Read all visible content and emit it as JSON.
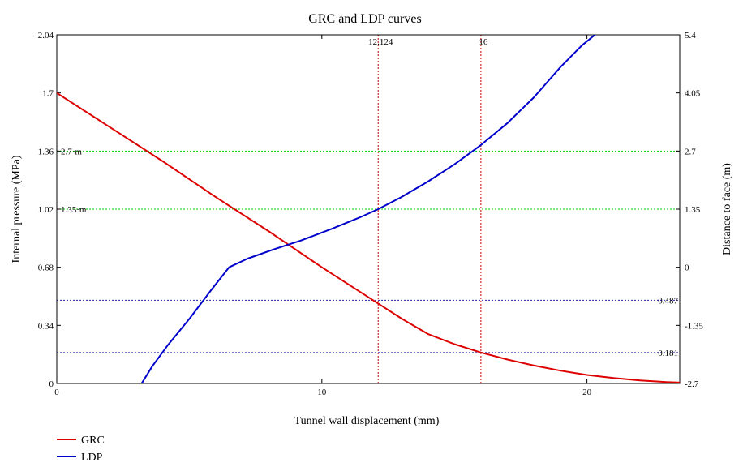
{
  "chart_data": {
    "type": "line",
    "title": "GRC and LDP curves",
    "xlabel": "Tunnel wall displacement (mm)",
    "ylabel_left": "Internal pressure (MPa)",
    "ylabel_right": "Distance to face (m)",
    "xlim": [
      0,
      23.5
    ],
    "ylim_left": [
      0,
      2.04
    ],
    "ylim_right": [
      -2.7,
      5.4
    ],
    "x_ticks": [
      "0",
      "10",
      "20"
    ],
    "x_tick_values": [
      0,
      10,
      20
    ],
    "y_left_ticks": [
      "0",
      "0.34",
      "0.68",
      "1.02",
      "1.36",
      "1.7",
      "2.04"
    ],
    "y_left_tick_values": [
      0,
      0.34,
      0.68,
      1.02,
      1.36,
      1.7,
      2.04
    ],
    "y_right_ticks": [
      "-2.7",
      "-1.35",
      "0",
      "1.35",
      "2.7",
      "4.05",
      "5.4"
    ],
    "y_right_tick_values": [
      -2.7,
      -1.35,
      0,
      1.35,
      2.7,
      4.05,
      5.4
    ],
    "series": [
      {
        "name": "GRC",
        "axis": "left",
        "color": "#dd0000",
        "x": [
          0,
          2,
          4,
          6,
          8,
          10,
          12,
          13,
          14,
          15,
          16,
          17,
          18,
          19,
          20,
          21,
          22,
          23,
          23.5
        ],
        "y": [
          1.7,
          1.5,
          1.3,
          1.09,
          0.89,
          0.68,
          0.48,
          0.38,
          0.29,
          0.23,
          0.181,
          0.14,
          0.105,
          0.075,
          0.05,
          0.032,
          0.018,
          0.008,
          0.005
        ]
      },
      {
        "name": "LDP",
        "axis": "right",
        "color": "#0000cc",
        "x": [
          3.2,
          3.6,
          4.2,
          5.0,
          5.8,
          6.5,
          7.2,
          8.2,
          9.2,
          10.4,
          11.4,
          12.124,
          13.0,
          14.0,
          15.0,
          16.0,
          17.0,
          18.0,
          19.0,
          19.8,
          20.3,
          20.6
        ],
        "y": [
          -2.7,
          -2.3,
          -1.8,
          -1.2,
          -0.55,
          0,
          0.2,
          0.42,
          0.62,
          0.9,
          1.15,
          1.35,
          1.63,
          1.99,
          2.39,
          2.84,
          3.35,
          3.95,
          4.65,
          5.15,
          5.4,
          5.5
        ]
      }
    ],
    "reference_lines": [
      {
        "orientation": "vertical",
        "axis": "x",
        "value": 12.124,
        "label": "12.124",
        "color": "#cc0000"
      },
      {
        "orientation": "vertical",
        "axis": "x",
        "value": 16,
        "label": "16",
        "color": "#cc0000"
      },
      {
        "orientation": "horizontal",
        "axis": "right",
        "value": 2.7,
        "label": "2.7·m",
        "color": "#00cc00"
      },
      {
        "orientation": "horizontal",
        "axis": "right",
        "value": 1.35,
        "label": "1.35·m",
        "color": "#00cc00"
      },
      {
        "orientation": "horizontal",
        "axis": "left",
        "value": 0.487,
        "label": "0.487",
        "color": "#2222aa"
      },
      {
        "orientation": "horizontal",
        "axis": "left",
        "value": 0.181,
        "label": "0.181",
        "color": "#2222aa"
      }
    ],
    "legend": {
      "placement": "bottom-left",
      "entries": [
        {
          "label": "GRC",
          "color": "#dd0000"
        },
        {
          "label": "LDP",
          "color": "#0000cc"
        }
      ]
    }
  }
}
